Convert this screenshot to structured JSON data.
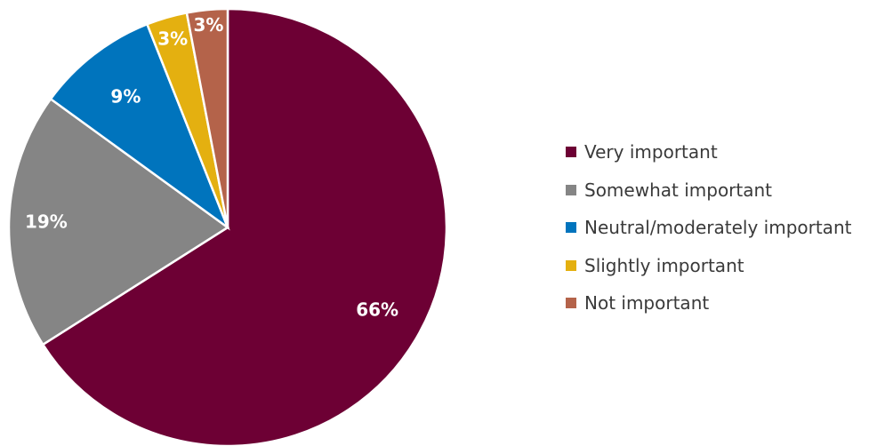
{
  "chart_data": {
    "type": "pie",
    "title": "",
    "legend_position": "right",
    "slices": [
      {
        "label": "Very important",
        "value": 66,
        "value_label": "66%",
        "color": "#6d0034"
      },
      {
        "label": "Somewhat important",
        "value": 19,
        "value_label": "19%",
        "color": "#858585"
      },
      {
        "label": "Neutral/moderately important",
        "value": 9,
        "value_label": "9%",
        "color": "#0074bd"
      },
      {
        "label": "Slightly important",
        "value": 3,
        "value_label": "3%",
        "color": "#e4b010"
      },
      {
        "label": "Not important",
        "value": 3,
        "value_label": "3%",
        "color": "#b4634a"
      }
    ]
  }
}
